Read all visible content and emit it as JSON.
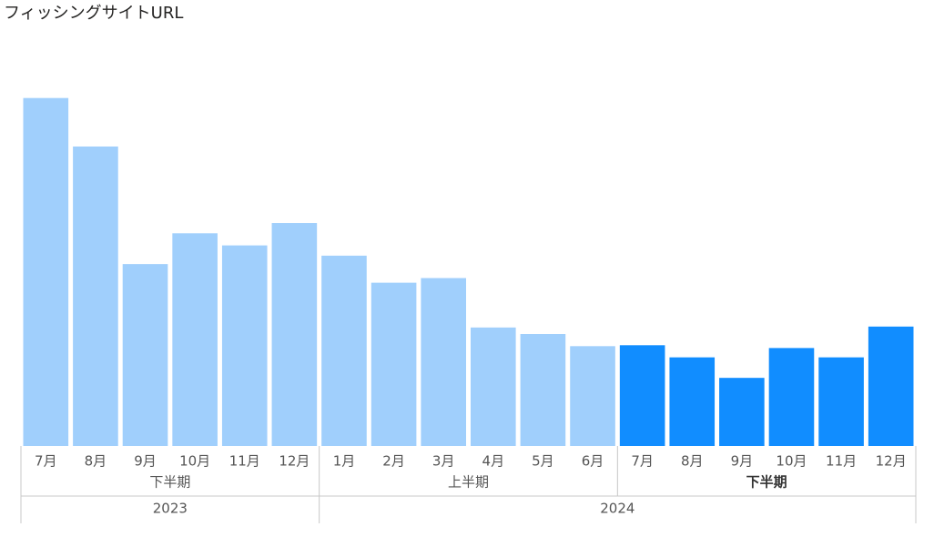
{
  "chart_data": {
    "type": "bar",
    "title": "フィッシングサイトURL",
    "years": [
      {
        "label": "2023",
        "halves": [
          {
            "label": "下半期",
            "selected": false,
            "months": [
              "7月",
              "8月",
              "9月",
              "10月",
              "11月",
              "12月"
            ]
          }
        ]
      },
      {
        "label": "2024",
        "halves": [
          {
            "label": "上半期",
            "selected": false,
            "months": [
              "1月",
              "2月",
              "3月",
              "4月",
              "5月",
              "6月"
            ]
          },
          {
            "label": "下半期",
            "selected": true,
            "months": [
              "7月",
              "8月",
              "9月",
              "10月",
              "11月",
              "12月"
            ]
          }
        ]
      }
    ],
    "values": [
      373,
      321,
      195,
      228,
      215,
      239,
      204,
      175,
      180,
      127,
      120,
      107,
      108,
      95,
      73,
      105,
      95,
      128
    ],
    "color": "#a0cffc",
    "selected_color": "#118dff",
    "ylim": [
      0,
      400
    ]
  }
}
